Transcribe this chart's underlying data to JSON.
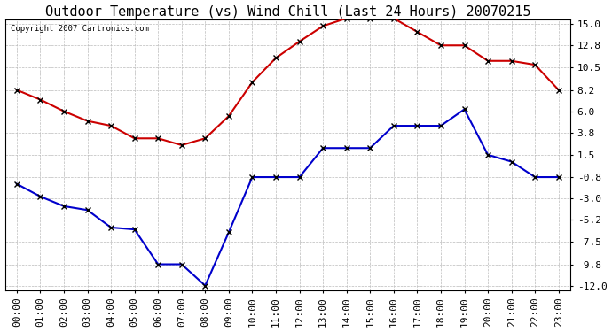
{
  "title": "Outdoor Temperature (vs) Wind Chill (Last 24 Hours) 20070215",
  "copyright": "Copyright 2007 Cartronics.com",
  "x_labels": [
    "00:00",
    "01:00",
    "02:00",
    "03:00",
    "04:00",
    "05:00",
    "06:00",
    "07:00",
    "08:00",
    "09:00",
    "10:00",
    "11:00",
    "12:00",
    "13:00",
    "14:00",
    "15:00",
    "16:00",
    "17:00",
    "18:00",
    "19:00",
    "20:00",
    "21:00",
    "22:00",
    "23:00"
  ],
  "red_data": [
    8.2,
    7.2,
    6.0,
    5.0,
    4.5,
    3.2,
    3.2,
    2.5,
    3.2,
    5.5,
    9.0,
    11.5,
    13.2,
    14.8,
    15.6,
    15.6,
    15.6,
    14.2,
    12.8,
    12.8,
    11.2,
    11.2,
    10.8,
    8.2
  ],
  "blue_data": [
    -1.5,
    -2.8,
    -3.8,
    -4.2,
    -6.0,
    -6.2,
    -9.8,
    -9.8,
    -12.0,
    -6.5,
    -0.8,
    -0.8,
    -0.8,
    2.2,
    2.2,
    2.2,
    4.5,
    4.5,
    4.5,
    6.2,
    1.5,
    0.8,
    -0.8,
    -0.8
  ],
  "yticks": [
    15.0,
    12.8,
    10.5,
    8.2,
    6.0,
    3.8,
    1.5,
    -0.8,
    -3.0,
    -5.2,
    -7.5,
    -9.8,
    -12.0
  ],
  "background_color": "#ffffff",
  "grid_color": "#bbbbbb",
  "red_color": "#cc0000",
  "blue_color": "#0000cc",
  "title_fontsize": 11,
  "tick_fontsize": 8
}
